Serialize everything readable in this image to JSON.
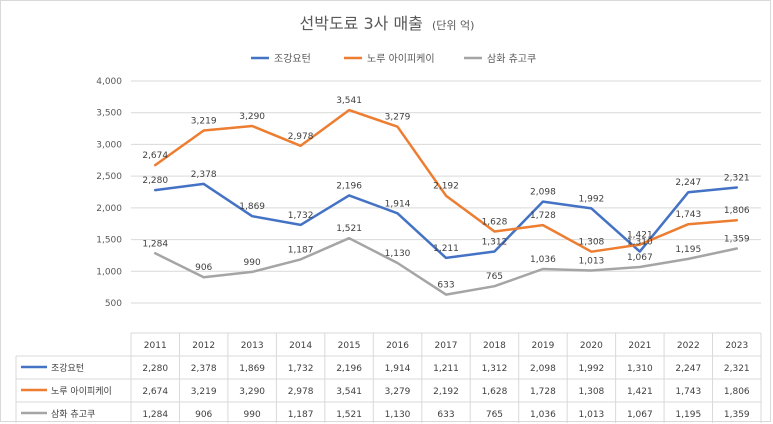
{
  "chart_data": {
    "type": "line",
    "title": "선박도료 3사 매출",
    "subtitle": "(단위 억)",
    "categories": [
      "2011",
      "2012",
      "2013",
      "2014",
      "2015",
      "2016",
      "2017",
      "2018",
      "2019",
      "2020",
      "2021",
      "2022",
      "2023"
    ],
    "ylim": [
      500,
      4000
    ],
    "yticks": [
      500,
      1000,
      1500,
      2000,
      2500,
      3000,
      3500,
      4000
    ],
    "ytick_labels": [
      "500",
      "1,000",
      "1,500",
      "2,000",
      "2,500",
      "3,000",
      "3,500",
      "4,000"
    ],
    "grid": true,
    "legend_position": "top",
    "series": [
      {
        "name": "조강요턴",
        "color": "#4472c4",
        "values": [
          2280,
          2378,
          1869,
          1732,
          2196,
          1914,
          1211,
          1312,
          2098,
          1992,
          1310,
          2247,
          2321
        ],
        "labels": [
          "2,280",
          "2,378",
          "1,869",
          "1,732",
          "2,196",
          "1,914",
          "1,211",
          "1,312",
          "2,098",
          "1,992",
          "1,310",
          "2,247",
          "2,321"
        ]
      },
      {
        "name": "노루 아이피케이",
        "color": "#ed7d31",
        "values": [
          2674,
          3219,
          3290,
          2978,
          3541,
          3279,
          2192,
          1628,
          1728,
          1308,
          1421,
          1743,
          1806
        ],
        "labels": [
          "2,674",
          "3,219",
          "3,290",
          "2,978",
          "3,541",
          "3,279",
          "2,192",
          "1,628",
          "1,728",
          "1,308",
          "1,421",
          "1,743",
          "1,806"
        ]
      },
      {
        "name": "삼화 츄고쿠",
        "color": "#a5a5a5",
        "values": [
          1284,
          906,
          990,
          1187,
          1521,
          1130,
          633,
          765,
          1036,
          1013,
          1067,
          1195,
          1359
        ],
        "labels": [
          "1,284",
          "906",
          "990",
          "1,187",
          "1,521",
          "1,130",
          "633",
          "765",
          "1,036",
          "1,013",
          "1,067",
          "1,195",
          "1,359"
        ]
      }
    ],
    "data_table": true
  }
}
